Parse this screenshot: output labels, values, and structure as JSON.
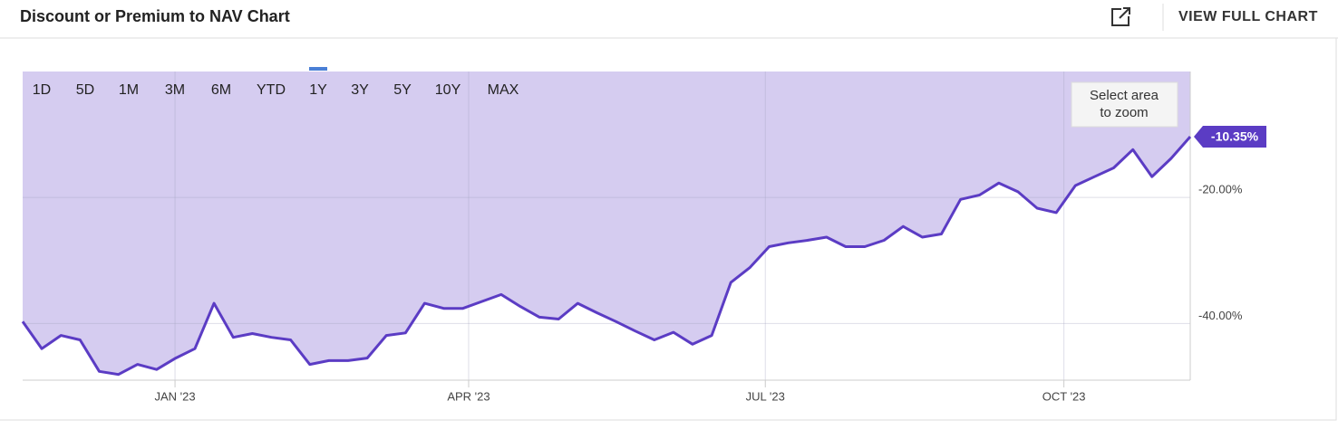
{
  "header": {
    "title": "Discount or Premium to NAV Chart",
    "action": "VIEW FULL CHART"
  },
  "chart_data": {
    "type": "area",
    "ranges": [
      "1D",
      "5D",
      "1M",
      "3M",
      "6M",
      "YTD",
      "1Y",
      "3Y",
      "5Y",
      "10Y",
      "MAX"
    ],
    "active_range": 6,
    "zoom_hint": [
      "Select area",
      "to zoom"
    ],
    "color": "#5b3cc4",
    "fill": "#d5ccf0",
    "values": [
      -39.7,
      -44.0,
      -41.9,
      -42.6,
      -47.6,
      -48.1,
      -46.5,
      -47.3,
      -45.5,
      -44.0,
      -36.8,
      -42.2,
      -41.6,
      -42.2,
      -42.6,
      -46.5,
      -45.9,
      -45.9,
      -45.5,
      -41.9,
      -41.5,
      -36.8,
      -37.6,
      -37.6,
      -36.5,
      -35.4,
      -37.3,
      -39.0,
      -39.3,
      -36.8,
      -38.3,
      -39.7,
      -41.2,
      -42.6,
      -41.4,
      -43.3,
      -41.9,
      -33.5,
      -31.1,
      -27.8,
      -27.2,
      -26.8,
      -26.3,
      -27.8,
      -27.8,
      -26.8,
      -24.6,
      -26.3,
      -25.8,
      -20.3,
      -19.6,
      -17.7,
      -19.1,
      -21.7,
      -22.4,
      -18.1,
      -16.7,
      -15.3,
      -12.4,
      -16.7,
      -13.8,
      -10.35
    ],
    "value_labels": [
      null,
      null,
      null,
      null,
      null,
      null,
      null,
      null,
      null,
      null,
      null,
      null,
      null,
      null,
      null,
      null,
      null,
      null,
      null,
      null,
      null,
      null,
      null,
      null,
      null,
      null,
      null,
      null,
      null,
      null,
      null,
      null,
      null,
      null,
      null,
      null,
      null,
      null,
      null,
      null,
      null,
      null,
      null,
      null,
      null,
      null,
      null,
      null,
      null,
      null,
      null,
      null,
      null,
      null,
      null,
      null,
      null,
      null,
      null,
      null,
      null,
      "-10.35%"
    ],
    "xlim": [
      0,
      61
    ],
    "xticks": [
      {
        "value": 7.96,
        "label": "JAN '23"
      },
      {
        "value": 23.3,
        "label": "APR '23"
      },
      {
        "value": 38.8,
        "label": "JUL '23"
      },
      {
        "value": 54.4,
        "label": "OCT '23"
      }
    ],
    "ylim": [
      -49,
      0
    ],
    "yticks": [
      {
        "value": -20,
        "label": "-20.00%"
      },
      {
        "value": -40,
        "label": "-40.00%"
      }
    ],
    "grid": true
  }
}
